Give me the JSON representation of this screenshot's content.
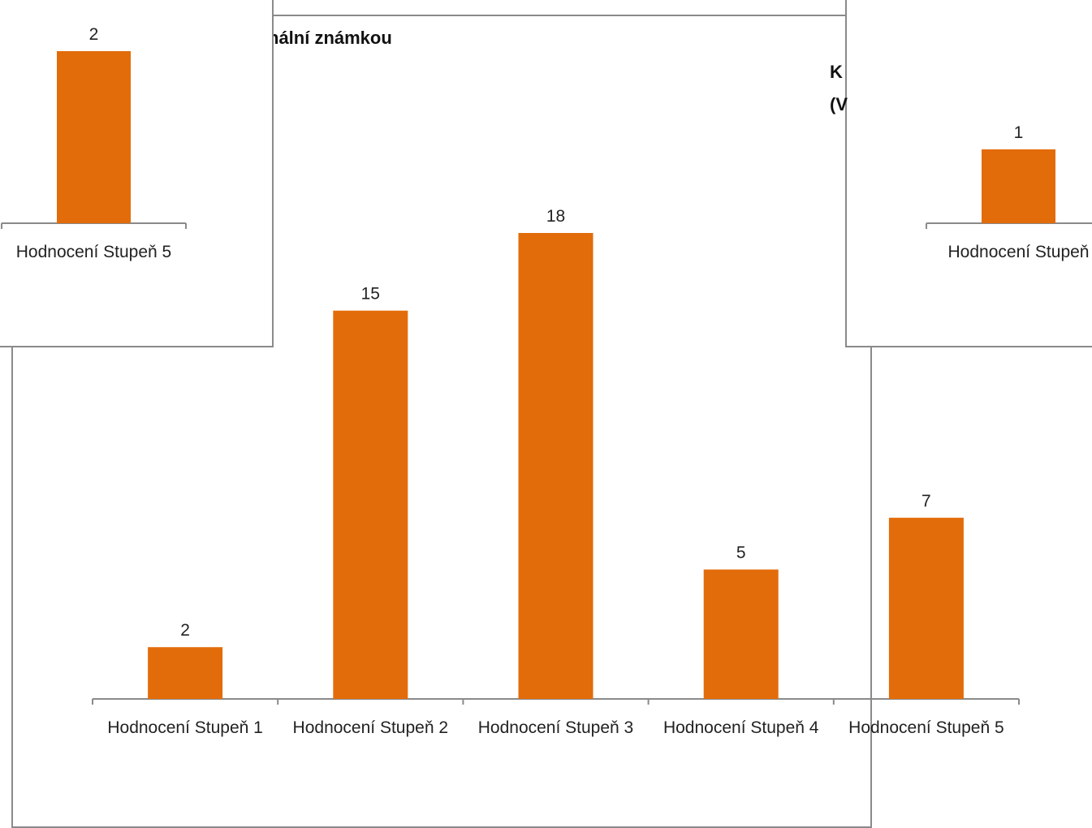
{
  "colors": {
    "bar": "#e36c0a",
    "axis": "#8a8a8a",
    "border": "#8a8a8a"
  },
  "main_title_fragment": "nální známkou",
  "right_title_fragments": [
    "K",
    "(V"
  ],
  "chart_data": [
    {
      "type": "bar",
      "title": "",
      "categories": [
        "Hodnocení Stupeň 1",
        "Hodnocení Stupeň 2",
        "Hodnocení Stupeň 3",
        "Hodnocení Stupeň 4",
        "Hodnocení Stupeň 5"
      ],
      "values": [
        2,
        15,
        18,
        5,
        7
      ],
      "xlabel": "",
      "ylabel": "",
      "ylim": [
        0,
        18
      ],
      "grid": false
    },
    {
      "type": "bar",
      "title": "",
      "categories": [
        "Hodnocení Stupeň 5"
      ],
      "values": [
        2
      ],
      "xlabel": "",
      "ylabel": "",
      "ylim": [
        0,
        2
      ],
      "grid": false
    },
    {
      "type": "bar",
      "title": "",
      "categories": [
        "Hodnocení Stupeň"
      ],
      "values": [
        1
      ],
      "xlabel": "",
      "ylabel": "",
      "ylim": [
        0,
        1
      ],
      "grid": false
    }
  ]
}
